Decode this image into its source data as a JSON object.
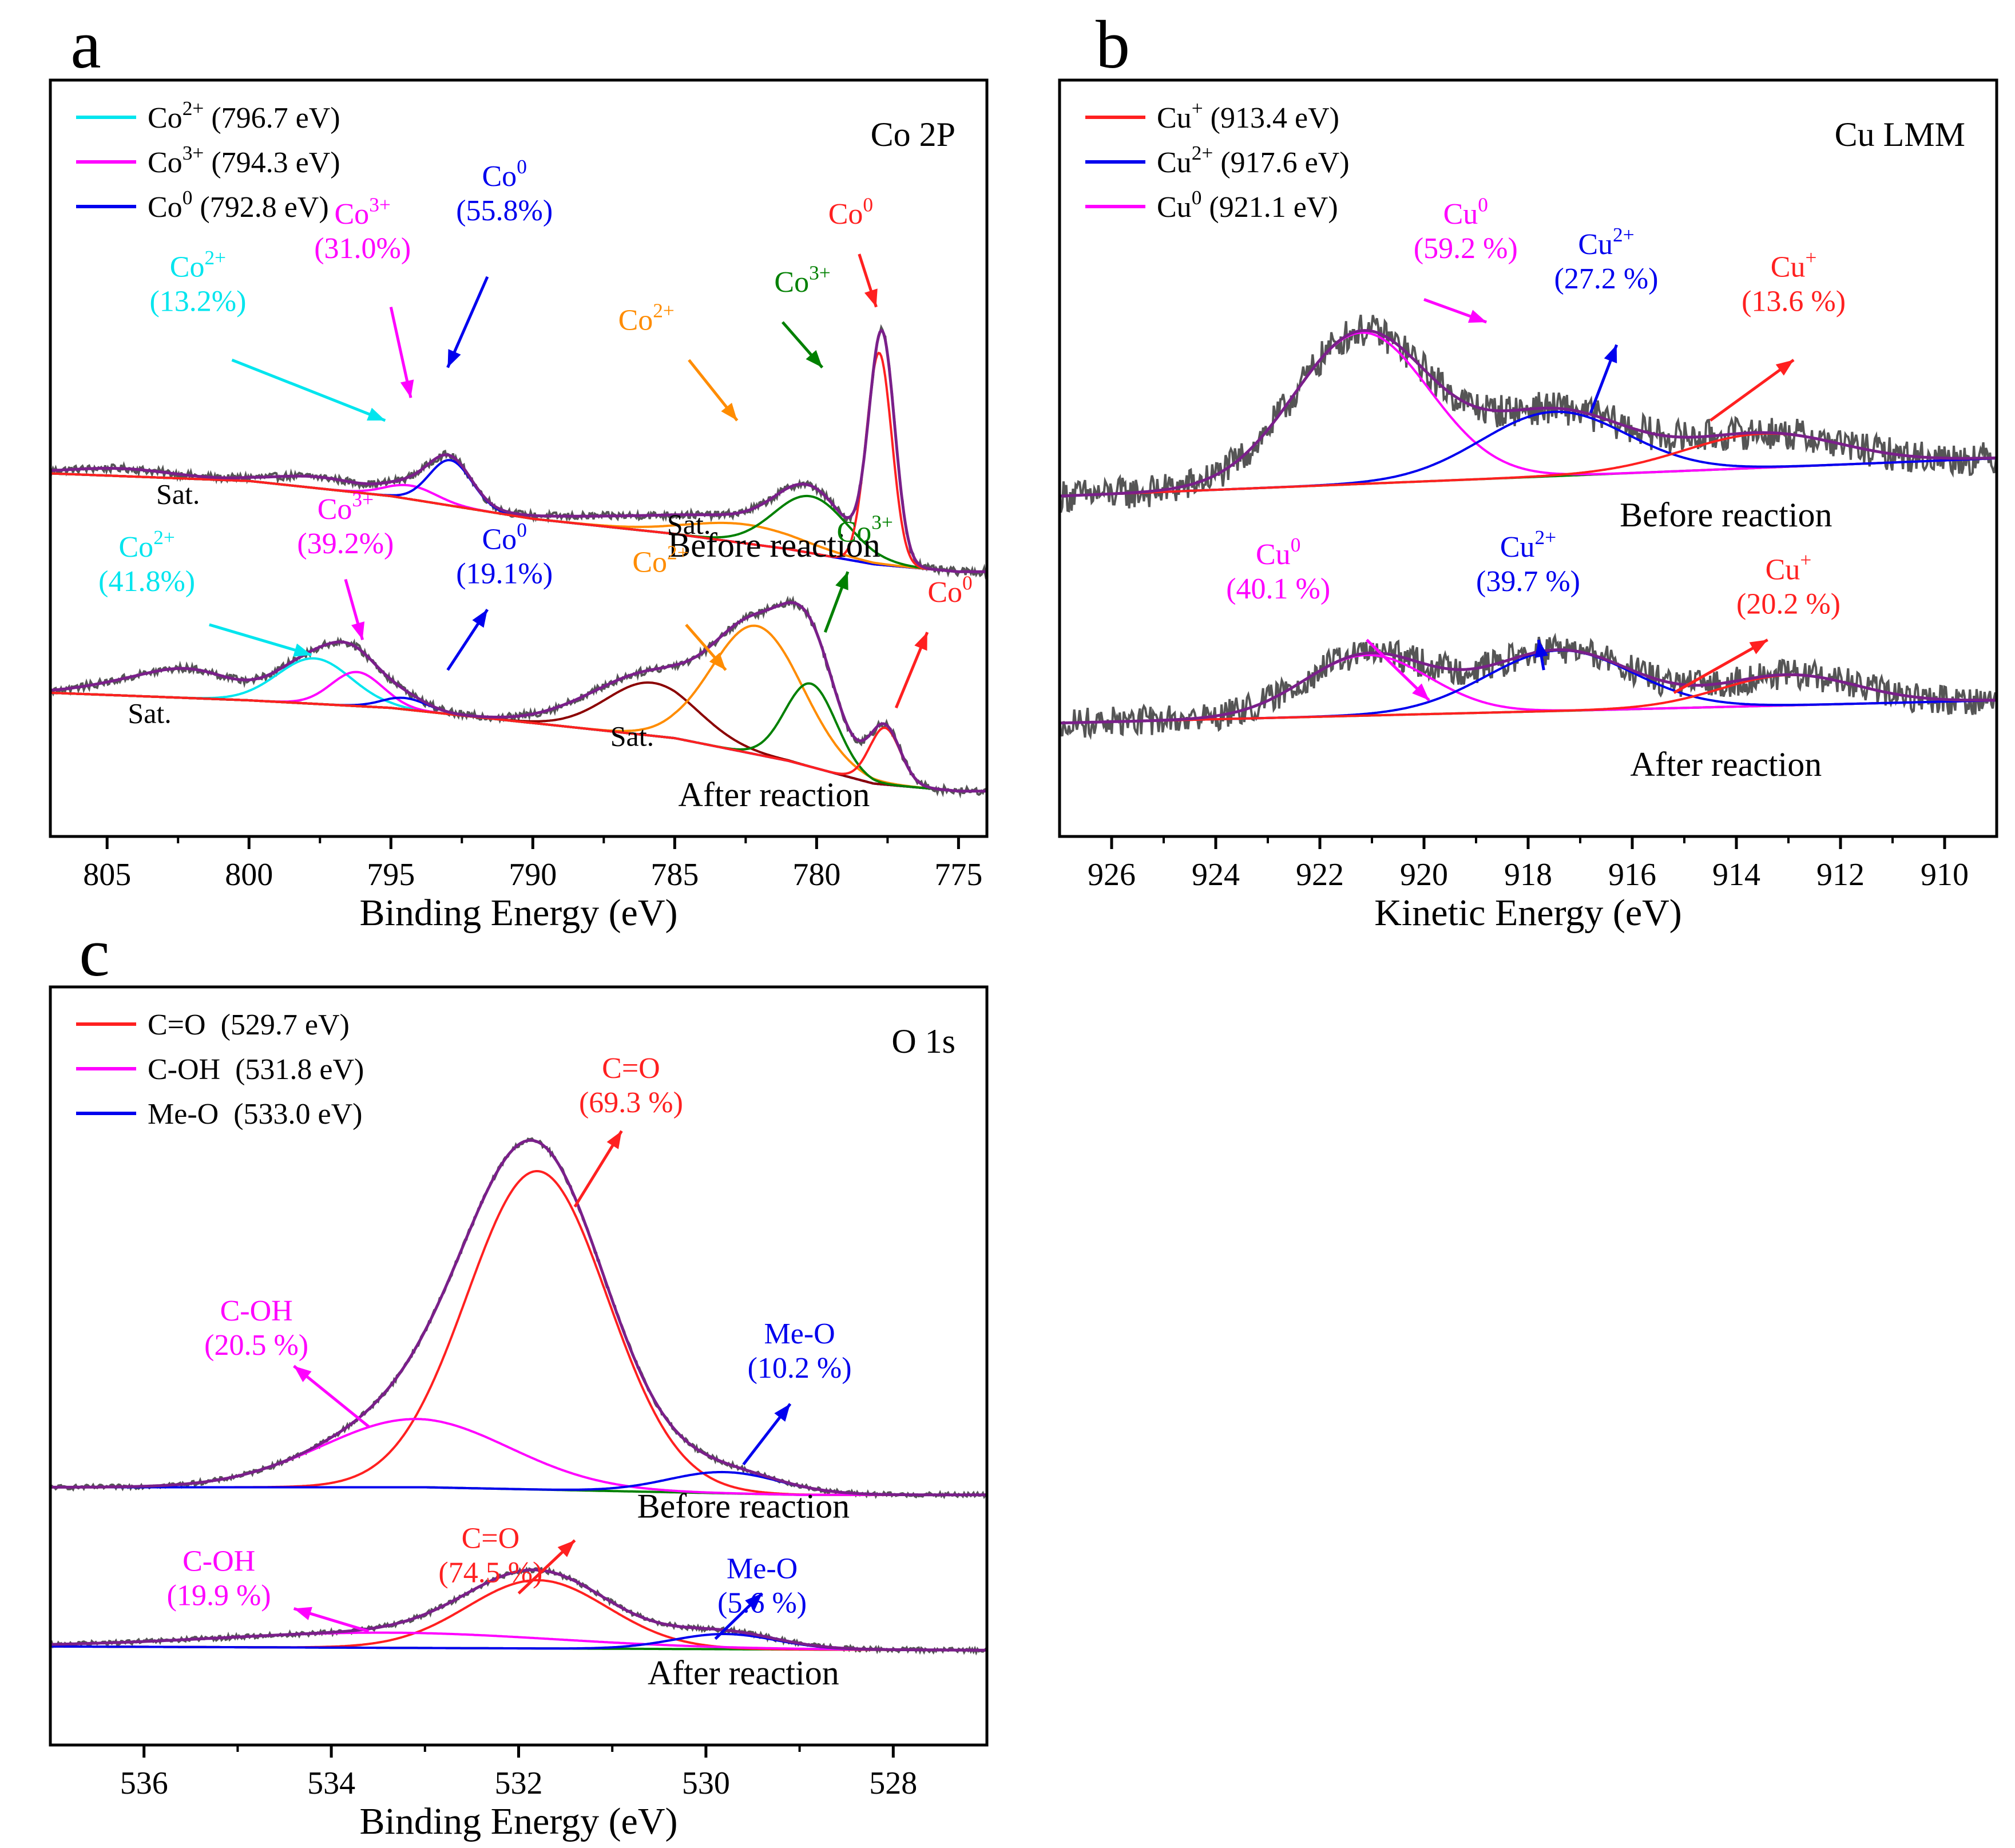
{
  "chart_data": [
    {
      "id": "a",
      "type": "line",
      "panel_label": "a",
      "title": "Co 2P",
      "xlabel": "Binding Energy (eV)",
      "ylabel": "",
      "xlim": [
        807,
        774
      ],
      "ylim": [
        0,
        100
      ],
      "x_ticks": [
        805,
        800,
        795,
        790,
        785,
        780,
        775
      ],
      "x_tick_labels": [
        "805",
        "800",
        "795",
        "790",
        "785",
        "780",
        "775"
      ],
      "legend": {
        "placement": "top-left",
        "entries": [
          {
            "color": "#00e5ee",
            "main": "Co",
            "sup": "2+",
            "rest": "(796.7 eV)"
          },
          {
            "color": "#ff00ff",
            "main": "Co",
            "sup": "3+",
            "rest": "(794.3 eV)"
          },
          {
            "color": "#0000ee",
            "main": "Co",
            "sup": "0",
            "rest": "(792.8 eV)"
          }
        ]
      },
      "groups": [
        {
          "label": "Before reaction",
          "label_x": 781.5,
          "label_y": 37,
          "base_x": [
            807,
            800,
            795,
            790,
            785,
            781,
            778,
            775,
            774
          ],
          "base_y": [
            48,
            47,
            45,
            42,
            40,
            38,
            36,
            35,
            35
          ],
          "envelope_peaks": [
            {
              "c": 804.5,
              "w": 1.8,
              "h": 1.0
            },
            {
              "c": 797.5,
              "w": 1.6,
              "h": 1.5
            },
            {
              "c": 794.3,
              "w": 0.9,
              "h": 1.8
            },
            {
              "c": 792.9,
              "w": 0.75,
              "h": 6.0
            },
            {
              "c": 786.0,
              "w": 2.5,
              "h": 1.5
            },
            {
              "c": 782.5,
              "w": 2.0,
              "h": 2.5
            },
            {
              "c": 780.2,
              "w": 1.2,
              "h": 7.5
            },
            {
              "c": 777.7,
              "w": 0.45,
              "h": 30.0
            }
          ],
          "components": [
            {
              "color": "#ff00ff",
              "c": 794.3,
              "w": 0.9,
              "h": 1.8
            },
            {
              "color": "#0000ee",
              "c": 792.9,
              "w": 0.75,
              "h": 6.0
            },
            {
              "color": "#ff8c00",
              "c": 782.5,
              "w": 2.0,
              "h": 2.5
            },
            {
              "color": "#008000",
              "c": 780.2,
              "w": 1.3,
              "h": 7.5
            },
            {
              "color": "#ff2020",
              "c": 777.8,
              "w": 0.45,
              "h": 28.0
            }
          ],
          "annotations": [
            {
              "main": "Co",
              "sup": "2+",
              "val": "(13.2%)",
              "color": "#00e5ee",
              "x": 801.8,
              "y": 74,
              "ax": 800.6,
              "ay": 63,
              "tx": 795.2,
              "ty": 55
            },
            {
              "main": "Co",
              "sup": "3+",
              "val": "(31.0%)",
              "color": "#ff00ff",
              "x": 796.0,
              "y": 81,
              "ax": 795.0,
              "ay": 70,
              "tx": 794.3,
              "ty": 58
            },
            {
              "main": "Co",
              "sup": "0",
              "val": "(55.8%)",
              "color": "#0000ee",
              "x": 791.0,
              "y": 86,
              "ax": 791.6,
              "ay": 74,
              "tx": 793.0,
              "ty": 62
            },
            {
              "main": "Co",
              "sup": "2+",
              "val": "",
              "color": "#ff8c00",
              "x": 786.0,
              "y": 67,
              "ax": 784.5,
              "ay": 63,
              "tx": 782.8,
              "ty": 55
            },
            {
              "main": "Co",
              "sup": "3+",
              "val": "",
              "color": "#008000",
              "x": 780.5,
              "y": 72,
              "ax": 781.2,
              "ay": 68,
              "tx": 779.8,
              "ty": 62
            },
            {
              "main": "Co",
              "sup": "0",
              "val": "",
              "color": "#ff2020",
              "x": 778.8,
              "y": 81,
              "ax": 778.5,
              "ay": 77,
              "tx": 777.9,
              "ty": 70
            }
          ],
          "sat_labels": [
            {
              "text": "Sat.",
              "x": 802.5,
              "y": 44
            },
            {
              "text": "Sat.",
              "x": 784.5,
              "y": 40
            }
          ]
        },
        {
          "label": "After reaction",
          "label_x": 781.5,
          "label_y": 4,
          "base_x": [
            807,
            800,
            795,
            790,
            785,
            781,
            778,
            775,
            774
          ],
          "base_y": [
            19,
            18,
            17,
            15,
            13,
            10,
            7,
            6,
            6
          ],
          "envelope_peaks": [
            {
              "c": 804.5,
              "w": 1.5,
              "h": 1.3
            },
            {
              "c": 802.0,
              "w": 1.5,
              "h": 3.5
            },
            {
              "c": 797.7,
              "w": 1.3,
              "h": 6.0
            },
            {
              "c": 796.2,
              "w": 0.9,
              "h": 4.5
            },
            {
              "c": 794.5,
              "w": 0.8,
              "h": 1.5
            },
            {
              "c": 788.2,
              "w": 1.5,
              "h": 2.0
            },
            {
              "c": 785.8,
              "w": 1.6,
              "h": 7.0
            },
            {
              "c": 782.1,
              "w": 1.6,
              "h": 17.0
            },
            {
              "c": 780.2,
              "w": 0.9,
              "h": 11.0
            },
            {
              "c": 777.6,
              "w": 0.55,
              "h": 7.5
            }
          ],
          "components": [
            {
              "color": "#00e5ee",
              "c": 797.7,
              "w": 1.3,
              "h": 6.0
            },
            {
              "color": "#ff00ff",
              "c": 796.2,
              "w": 0.9,
              "h": 4.5
            },
            {
              "color": "#0000ee",
              "c": 794.5,
              "w": 0.8,
              "h": 1.5
            },
            {
              "color": "#8b0000",
              "c": 785.8,
              "w": 1.6,
              "h": 7.0
            },
            {
              "color": "#ff8c00",
              "c": 782.1,
              "w": 1.6,
              "h": 17.0
            },
            {
              "color": "#008000",
              "c": 780.2,
              "w": 0.9,
              "h": 11.0
            },
            {
              "color": "#ff2020",
              "c": 777.6,
              "w": 0.55,
              "h": 7.5
            }
          ],
          "annotations": [
            {
              "main": "Co",
              "sup": "2+",
              "val": "(41.8%)",
              "color": "#00e5ee",
              "x": 803.6,
              "y": 37,
              "ax": 801.4,
              "ay": 28,
              "tx": 797.8,
              "ty": 24
            },
            {
              "main": "Co",
              "sup": "3+",
              "val": "(39.2%)",
              "color": "#ff00ff",
              "x": 796.6,
              "y": 42,
              "ax": 796.6,
              "ay": 34,
              "tx": 796.0,
              "ty": 26
            },
            {
              "main": "Co",
              "sup": "0",
              "val": "(19.1%)",
              "color": "#0000ee",
              "x": 791.0,
              "y": 38,
              "ax": 793.0,
              "ay": 22,
              "tx": 791.6,
              "ty": 30
            },
            {
              "main": "Co",
              "sup": "2+",
              "val": "",
              "color": "#ff8c00",
              "x": 785.5,
              "y": 35,
              "ax": 784.6,
              "ay": 28,
              "tx": 783.2,
              "ty": 22
            },
            {
              "main": "Co",
              "sup": "3+",
              "val": "",
              "color": "#008000",
              "x": 778.3,
              "y": 39,
              "ax": 779.7,
              "ay": 27,
              "tx": 778.9,
              "ty": 35
            },
            {
              "main": "Co",
              "sup": "0",
              "val": "",
              "color": "#ff2020",
              "x": 775.3,
              "y": 31,
              "ax": 777.2,
              "ay": 17,
              "tx": 776.1,
              "ty": 27
            }
          ],
          "sat_labels": [
            {
              "text": "Sat.",
              "x": 803.5,
              "y": 15
            },
            {
              "text": "Sat.",
              "x": 786.5,
              "y": 12
            }
          ]
        }
      ]
    },
    {
      "id": "b",
      "type": "line",
      "panel_label": "b",
      "title": "Cu LMM",
      "xlabel": "Kinetic Energy (eV)",
      "ylabel": "",
      "xlim": [
        927,
        909
      ],
      "ylim": [
        0,
        100
      ],
      "x_ticks": [
        926,
        924,
        922,
        920,
        918,
        916,
        914,
        912,
        910
      ],
      "x_tick_labels": [
        "926",
        "924",
        "922",
        "920",
        "918",
        "916",
        "914",
        "912",
        "910"
      ],
      "legend": {
        "placement": "top-left",
        "entries": [
          {
            "color": "#ff2020",
            "main": "Cu",
            "sup": "+",
            "rest": "(913.4 eV)"
          },
          {
            "color": "#0000ee",
            "main": "Cu",
            "sup": "2+",
            "rest": "(917.6 eV)"
          },
          {
            "color": "#ff00ff",
            "main": "Cu",
            "sup": "0",
            "rest": "(921.1 eV)"
          }
        ]
      },
      "groups": [
        {
          "label": "Before reaction",
          "label_x": 914.2,
          "label_y": 41,
          "base_x": [
            927,
            909
          ],
          "base_y": [
            45,
            50
          ],
          "noise": 2.2,
          "envelope_peaks": [],
          "components": [
            {
              "color": "#ff00ff",
              "c": 921.2,
              "w": 1.3,
              "h": 20.0
            },
            {
              "color": "#0000ee",
              "c": 917.5,
              "w": 1.4,
              "h": 8.5
            },
            {
              "color": "#ff2020",
              "c": 913.5,
              "w": 1.5,
              "h": 4.5
            }
          ],
          "annotations": [
            {
              "main": "Cu",
              "sup": "0",
              "val": "(59.2 %)",
              "color": "#ff00ff",
              "x": 919.2,
              "y": 81,
              "ax": 920.0,
              "ay": 71,
              "tx": 918.8,
              "ty": 68
            },
            {
              "main": "Cu",
              "sup": "2+",
              "val": "(27.2 %)",
              "color": "#0000ee",
              "x": 916.5,
              "y": 77,
              "ax": 916.8,
              "ay": 56,
              "tx": 916.3,
              "ty": 65
            },
            {
              "main": "Cu",
              "sup": "+",
              "val": "(13.6 %)",
              "color": "#ff2020",
              "x": 912.9,
              "y": 74,
              "ax": 914.5,
              "ay": 55,
              "tx": 912.9,
              "ty": 63
            }
          ],
          "sat_labels": []
        },
        {
          "label": "After reaction",
          "label_x": 914.2,
          "label_y": 8,
          "base_x": [
            927,
            909
          ],
          "base_y": [
            15,
            18
          ],
          "noise": 2.0,
          "envelope_peaks": [],
          "components": [
            {
              "color": "#ff00ff",
              "c": 921.1,
              "w": 1.2,
              "h": 8.0
            },
            {
              "color": "#0000ee",
              "c": 917.4,
              "w": 1.4,
              "h": 8.0
            },
            {
              "color": "#ff2020",
              "c": 913.0,
              "w": 1.3,
              "h": 4.0
            }
          ],
          "annotations": [
            {
              "main": "Cu",
              "sup": "0",
              "val": "(40.1 %)",
              "color": "#ff00ff",
              "x": 922.8,
              "y": 36,
              "ax": 921.1,
              "ay": 26,
              "tx": 919.9,
              "ty": 18
            },
            {
              "main": "Cu",
              "sup": "2+",
              "val": "(39.7 %)",
              "color": "#0000ee",
              "x": 918.0,
              "y": 37,
              "ax": 917.7,
              "ay": 22,
              "tx": 917.8,
              "ty": 26
            },
            {
              "main": "Cu",
              "sup": "+",
              "val": "(20.2 %)",
              "color": "#ff2020",
              "x": 913.0,
              "y": 34,
              "ax": 915.2,
              "ay": 19,
              "tx": 913.4,
              "ty": 26
            }
          ],
          "sat_labels": []
        }
      ]
    },
    {
      "id": "c",
      "type": "line",
      "panel_label": "c",
      "title": "O 1s",
      "xlabel": "Binding Energy (eV)",
      "ylabel": "",
      "xlim": [
        537,
        527
      ],
      "ylim": [
        0,
        100
      ],
      "x_ticks": [
        536,
        534,
        532,
        530,
        528
      ],
      "x_tick_labels": [
        "536",
        "534",
        "532",
        "530",
        "528"
      ],
      "legend": {
        "placement": "top-left",
        "entries": [
          {
            "color": "#ff2020",
            "main": "C=O",
            "sup": "",
            "rest": "(529.7 eV)"
          },
          {
            "color": "#ff00ff",
            "main": "C-OH",
            "sup": "",
            "rest": "(531.8 eV)"
          },
          {
            "color": "#0000ee",
            "main": "Me-O",
            "sup": "",
            "rest": "(533.0 eV)"
          }
        ]
      },
      "groups": [
        {
          "label": "Before reaction",
          "label_x": 529.6,
          "label_y": 30,
          "base_x": [
            537,
            533,
            531,
            529,
            527
          ],
          "base_y": [
            34,
            34,
            33.5,
            33,
            33
          ],
          "noise": 0.3,
          "envelope_peaks": [],
          "components": [
            {
              "color": "#ff2020",
              "c": 531.8,
              "w": 0.75,
              "h": 42.0
            },
            {
              "color": "#ff00ff",
              "c": 533.1,
              "w": 1.0,
              "h": 9.0
            },
            {
              "color": "#0000ee",
              "c": 529.8,
              "w": 0.6,
              "h": 2.8
            }
          ],
          "annotations": [
            {
              "main": "C=O",
              "sup": "",
              "val": "(69.3 %)",
              "color": "#ff2020",
              "x": 530.8,
              "y": 88,
              "ax": 531.4,
              "ay": 71,
              "tx": 530.9,
              "ty": 81
            },
            {
              "main": "C-OH",
              "sup": "",
              "val": "(20.5 %)",
              "color": "#ff00ff",
              "x": 534.8,
              "y": 56,
              "ax": 533.6,
              "ay": 42,
              "tx": 534.4,
              "ty": 50
            },
            {
              "main": "Me-O",
              "sup": "",
              "val": "(10.2 %)",
              "color": "#0000ee",
              "x": 529.0,
              "y": 53,
              "ax": 529.6,
              "ay": 37,
              "tx": 529.1,
              "ty": 45
            }
          ],
          "sat_labels": []
        },
        {
          "label": "After reaction",
          "label_x": 529.6,
          "label_y": 8,
          "base_x": [
            537,
            527
          ],
          "base_y": [
            13,
            12.5
          ],
          "noise": 0.3,
          "envelope_peaks": [],
          "components": [
            {
              "color": "#ff2020",
              "c": 531.8,
              "w": 0.75,
              "h": 9.0
            },
            {
              "color": "#ff00ff",
              "c": 533.4,
              "w": 1.8,
              "h": 2.0
            },
            {
              "color": "#0000ee",
              "c": 529.8,
              "w": 0.55,
              "h": 2.0
            }
          ],
          "annotations": [
            {
              "main": "C=O",
              "sup": "",
              "val": "(74.5 %)",
              "color": "#ff2020",
              "x": 532.3,
              "y": 26,
              "ax": 532.0,
              "ay": 20,
              "tx": 531.4,
              "ty": 27
            },
            {
              "main": "C-OH",
              "sup": "",
              "val": "(19.9 %)",
              "color": "#ff00ff",
              "x": 535.2,
              "y": 23,
              "ax": 533.6,
              "ay": 15,
              "tx": 534.4,
              "ty": 18
            },
            {
              "main": "Me-O",
              "sup": "",
              "val": "(5.6 %)",
              "color": "#0000ee",
              "x": 529.4,
              "y": 22,
              "ax": 529.9,
              "ay": 14,
              "tx": 529.4,
              "ty": 20
            }
          ],
          "sat_labels": []
        }
      ]
    }
  ]
}
